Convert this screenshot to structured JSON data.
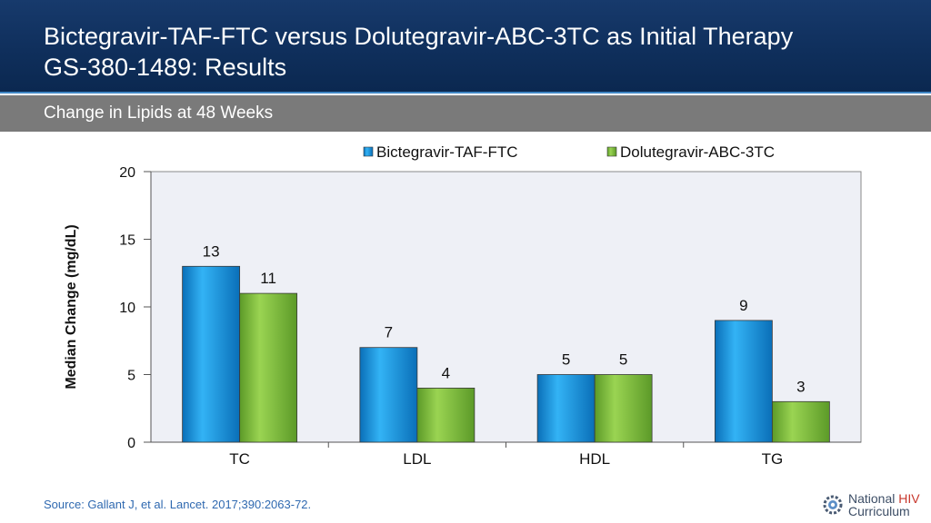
{
  "header": {
    "title_line1": "Bictegravir-TAF-FTC versus Dolutegravir-ABC-3TC as Initial Therapy",
    "title_line2": "GS-380-1489: Results"
  },
  "subheader": {
    "title": "Change in Lipids at 48 Weeks"
  },
  "chart_data": {
    "type": "bar",
    "categories": [
      "TC",
      "LDL",
      "HDL",
      "TG"
    ],
    "series": [
      {
        "name": "Bictegravir-TAF-FTC",
        "values": [
          13,
          7,
          5,
          9
        ],
        "color": "#1a8fd8"
      },
      {
        "name": "Dolutegravir-ABC-3TC",
        "values": [
          11,
          4,
          5,
          3
        ],
        "color": "#7cbf3a"
      }
    ],
    "ylabel": "Median Change (mg/dL)",
    "xlabel": "",
    "ylim": [
      0,
      20
    ],
    "yticks": [
      0,
      5,
      10,
      15,
      20
    ],
    "legend_position": "top-right",
    "plot_background": "#eef0f6"
  },
  "footer": {
    "source": "Source: Gallant J, et al. Lancet. 2017;390:2063-72.",
    "logo_line1_a": "National",
    "logo_line1_b": "HIV",
    "logo_line2": "Curriculum"
  }
}
